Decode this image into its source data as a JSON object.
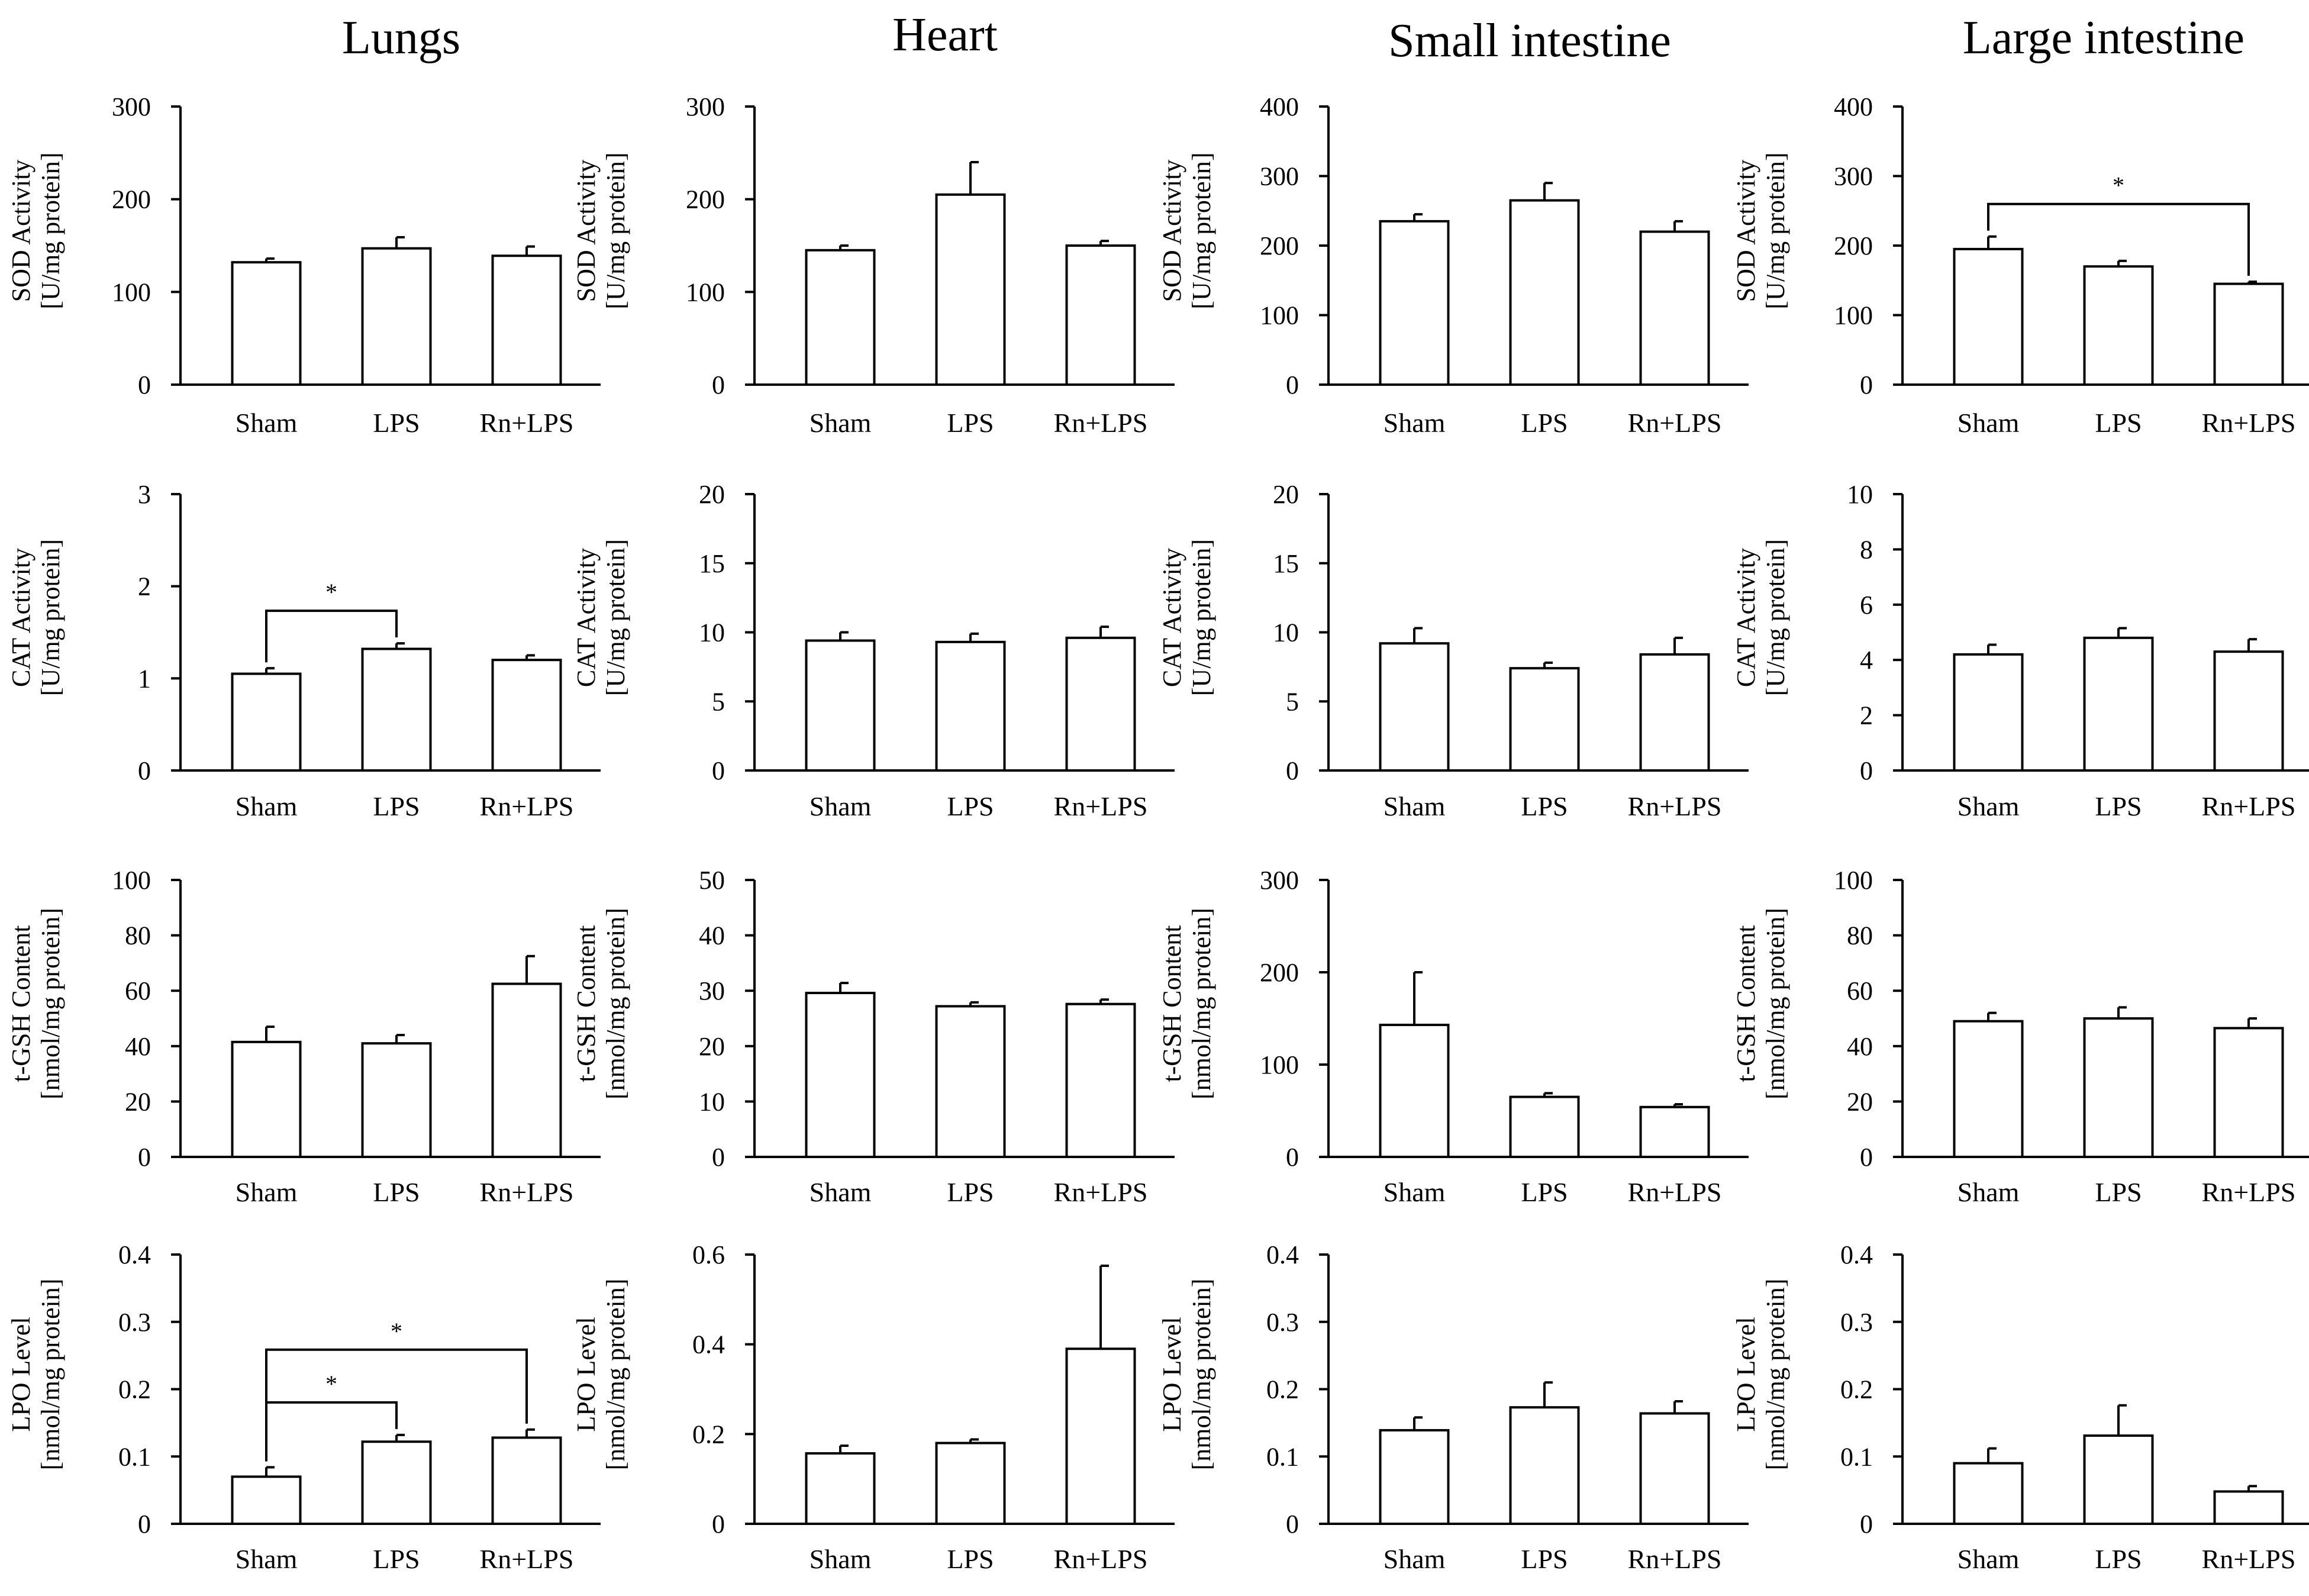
{
  "columns": [
    "Lungs",
    "Heart",
    "Small intestine",
    "Large intestine"
  ],
  "chart_data": [
    {
      "type": "bar",
      "organ": "Lungs",
      "ylabel": [
        "SOD Activity",
        "[U/mg protein]"
      ],
      "ylim": [
        0,
        300
      ],
      "ticks": [
        "0",
        "100",
        "200",
        "300"
      ],
      "categories": [
        "Sham",
        "LPS",
        "Rn+LPS"
      ],
      "values": [
        132,
        147,
        139
      ],
      "errors": [
        4,
        12,
        10
      ],
      "significance": []
    },
    {
      "type": "bar",
      "organ": "Heart",
      "ylabel": [
        "SOD Activity",
        "[U/mg protein]"
      ],
      "ylim": [
        0,
        300
      ],
      "ticks": [
        "0",
        "100",
        "200",
        "300"
      ],
      "categories": [
        "Sham",
        "LPS",
        "Rn+LPS"
      ],
      "values": [
        145,
        205,
        150
      ],
      "errors": [
        5,
        35,
        5
      ],
      "significance": []
    },
    {
      "type": "bar",
      "organ": "Small intestine",
      "ylabel": [
        "SOD Activity",
        "[U/mg protein]"
      ],
      "ylim": [
        0,
        400
      ],
      "ticks": [
        "0",
        "100",
        "200",
        "300",
        "400"
      ],
      "categories": [
        "Sham",
        "LPS",
        "Rn+LPS"
      ],
      "values": [
        235,
        265,
        220
      ],
      "errors": [
        10,
        25,
        15
      ],
      "significance": []
    },
    {
      "type": "bar",
      "organ": "Large intestine",
      "ylabel": [
        "SOD Activity",
        "[U/mg protein]"
      ],
      "ylim": [
        0,
        400
      ],
      "ticks": [
        "0",
        "100",
        "200",
        "300",
        "400"
      ],
      "categories": [
        "Sham",
        "LPS",
        "Rn+LPS"
      ],
      "values": [
        195,
        170,
        145
      ],
      "errors": [
        18,
        8,
        3
      ],
      "significance": [
        {
          "from": 0,
          "to": 2,
          "level": 1,
          "label": "*"
        }
      ]
    },
    {
      "type": "bar",
      "organ": "Lungs",
      "ylabel": [
        "CAT Activity",
        "[U/mg protein]"
      ],
      "ylim": [
        0,
        3
      ],
      "ticks": [
        "0",
        "1",
        "2",
        "3"
      ],
      "categories": [
        "Sham",
        "LPS",
        "Rn+LPS"
      ],
      "values": [
        1.05,
        1.32,
        1.2
      ],
      "errors": [
        0.06,
        0.06,
        0.05
      ],
      "significance": [
        {
          "from": 0,
          "to": 1,
          "level": 1,
          "label": "*"
        }
      ]
    },
    {
      "type": "bar",
      "organ": "Heart",
      "ylabel": [
        "CAT Activity",
        "[U/mg protein]"
      ],
      "ylim": [
        0,
        20
      ],
      "ticks": [
        "0",
        "5",
        "10",
        "15",
        "20"
      ],
      "categories": [
        "Sham",
        "LPS",
        "Rn+LPS"
      ],
      "values": [
        9.4,
        9.3,
        9.6
      ],
      "errors": [
        0.6,
        0.6,
        0.8
      ],
      "significance": []
    },
    {
      "type": "bar",
      "organ": "Small intestine",
      "ylabel": [
        "CAT Activity",
        "[U/mg protein]"
      ],
      "ylim": [
        0,
        20
      ],
      "ticks": [
        "0",
        "5",
        "10",
        "15",
        "20"
      ],
      "categories": [
        "Sham",
        "LPS",
        "Rn+LPS"
      ],
      "values": [
        9.2,
        7.4,
        8.4
      ],
      "errors": [
        1.1,
        0.4,
        1.2
      ],
      "significance": []
    },
    {
      "type": "bar",
      "organ": "Large intestine",
      "ylabel": [
        "CAT Activity",
        "[U/mg protein]"
      ],
      "ylim": [
        0,
        10
      ],
      "ticks": [
        "0",
        "2",
        "4",
        "6",
        "8",
        "10"
      ],
      "categories": [
        "Sham",
        "LPS",
        "Rn+LPS"
      ],
      "values": [
        4.2,
        4.8,
        4.3
      ],
      "errors": [
        0.35,
        0.35,
        0.45
      ],
      "significance": []
    },
    {
      "type": "bar",
      "organ": "Lungs",
      "ylabel": [
        "t-GSH Content",
        "[nmol/mg protein]"
      ],
      "ylim": [
        0,
        100
      ],
      "ticks": [
        "0",
        "20",
        "40",
        "60",
        "80",
        "100"
      ],
      "categories": [
        "Sham",
        "LPS",
        "Rn+LPS"
      ],
      "values": [
        41.5,
        41,
        62.5
      ],
      "errors": [
        5.5,
        3,
        10
      ],
      "significance": []
    },
    {
      "type": "bar",
      "organ": "Heart",
      "ylabel": [
        "t-GSH Content",
        "[nmol/mg protein]"
      ],
      "ylim": [
        0,
        50
      ],
      "ticks": [
        "0",
        "10",
        "20",
        "30",
        "40",
        "50"
      ],
      "categories": [
        "Sham",
        "LPS",
        "Rn+LPS"
      ],
      "values": [
        29.6,
        27.2,
        27.6
      ],
      "errors": [
        1.8,
        0.7,
        0.8
      ],
      "significance": []
    },
    {
      "type": "bar",
      "organ": "Small intestine",
      "ylabel": [
        "t-GSH Content",
        "[nmol/mg protein]"
      ],
      "ylim": [
        0,
        300
      ],
      "ticks": [
        "0",
        "100",
        "200",
        "300"
      ],
      "categories": [
        "Sham",
        "LPS",
        "Rn+LPS"
      ],
      "values": [
        143,
        65,
        54
      ],
      "errors": [
        57,
        4,
        3
      ],
      "significance": []
    },
    {
      "type": "bar",
      "organ": "Large intestine",
      "ylabel": [
        "t-GSH Content",
        "[nmol/mg protein]"
      ],
      "ylim": [
        0,
        100
      ],
      "ticks": [
        "0",
        "20",
        "40",
        "60",
        "80",
        "100"
      ],
      "categories": [
        "Sham",
        "LPS",
        "Rn+LPS"
      ],
      "values": [
        49,
        50,
        46.5
      ],
      "errors": [
        3,
        4,
        3.5
      ],
      "significance": []
    },
    {
      "type": "bar",
      "organ": "Lungs",
      "ylabel": [
        "LPO Level",
        "[nmol/mg protein]"
      ],
      "ylim": [
        0,
        0.4
      ],
      "ticks": [
        "0",
        "0.1",
        "0.2",
        "0.3",
        "0.4"
      ],
      "categories": [
        "Sham",
        "LPS",
        "Rn+LPS"
      ],
      "values": [
        0.07,
        0.122,
        0.128
      ],
      "errors": [
        0.014,
        0.01,
        0.012
      ],
      "significance": [
        {
          "from": 0,
          "to": 1,
          "level": 1,
          "label": "*"
        },
        {
          "from": 0,
          "to": 2,
          "level": 2,
          "label": "*"
        }
      ]
    },
    {
      "type": "bar",
      "organ": "Heart",
      "ylabel": [
        "LPO Level",
        "[nmol/mg protein]"
      ],
      "ylim": [
        0,
        0.6
      ],
      "ticks": [
        "0",
        "0.2",
        "0.4",
        "0.6"
      ],
      "categories": [
        "Sham",
        "LPS",
        "Rn+LPS"
      ],
      "values": [
        0.157,
        0.18,
        0.39
      ],
      "errors": [
        0.017,
        0.008,
        0.185
      ],
      "significance": []
    },
    {
      "type": "bar",
      "organ": "Small intestine",
      "ylabel": [
        "LPO Level",
        "[nmol/mg protein]"
      ],
      "ylim": [
        0,
        0.4
      ],
      "ticks": [
        "0",
        "0.1",
        "0.2",
        "0.3",
        "0.4"
      ],
      "categories": [
        "Sham",
        "LPS",
        "Rn+LPS"
      ],
      "values": [
        0.139,
        0.173,
        0.164
      ],
      "errors": [
        0.019,
        0.037,
        0.018
      ],
      "significance": []
    },
    {
      "type": "bar",
      "organ": "Large intestine",
      "ylabel": [
        "LPO Level",
        "[nmol/mg protein]"
      ],
      "ylim": [
        0,
        0.4
      ],
      "ticks": [
        "0",
        "0.1",
        "0.2",
        "0.3",
        "0.4"
      ],
      "categories": [
        "Sham",
        "LPS",
        "Rn+LPS"
      ],
      "values": [
        0.09,
        0.131,
        0.048
      ],
      "errors": [
        0.022,
        0.045,
        0.008
      ],
      "significance": []
    }
  ]
}
